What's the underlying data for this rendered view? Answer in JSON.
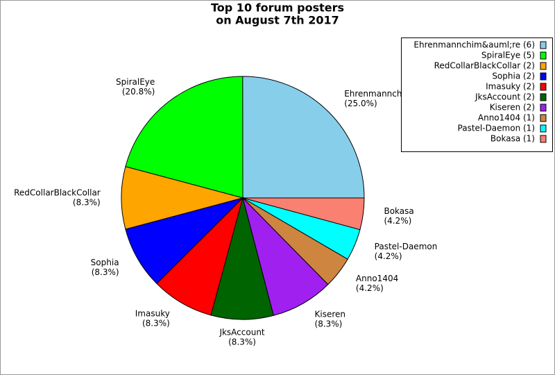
{
  "chart_data": {
    "type": "pie",
    "title": [
      "Top 10 forum posters",
      "on August 7th 2017"
    ],
    "categories": [
      "Ehrenmannchim",
      "SpiralEye",
      "RedCollarBlackCollar",
      "Sophia",
      "Imasuky",
      "JksAccount",
      "Kiseren",
      "Anno1404",
      "Pastel-Daemon",
      "Bokasa"
    ],
    "values": [
      25.0,
      20.8,
      8.3,
      8.3,
      8.3,
      8.3,
      8.3,
      4.2,
      4.2,
      4.2
    ],
    "value_labels": [
      "(25.0%)",
      "(20.8%)",
      "(8.3%)",
      "(8.3%)",
      "(8.3%)",
      "(8.3%)",
      "(8.3%)",
      "(4.2%)",
      "(4.2%)",
      "(4.2%)"
    ],
    "legend": [
      "Ehrenmannchim&auml;re (6)",
      "SpiralEye (5)",
      "RedCollarBlackCollar (2)",
      "Sophia (2)",
      "Imasuky (2)",
      "JksAccount (2)",
      "Kiseren (2)",
      "Anno1404 (1)",
      "Pastel-Daemon (1)",
      "Bokasa (1)"
    ],
    "colors": [
      "#87ceeb",
      "#00ff00",
      "#ffa500",
      "#0000ff",
      "#ff0000",
      "#006400",
      "#a020f0",
      "#cd853f",
      "#00ffff",
      "#fa8072"
    ],
    "legend_position": "upper right"
  }
}
